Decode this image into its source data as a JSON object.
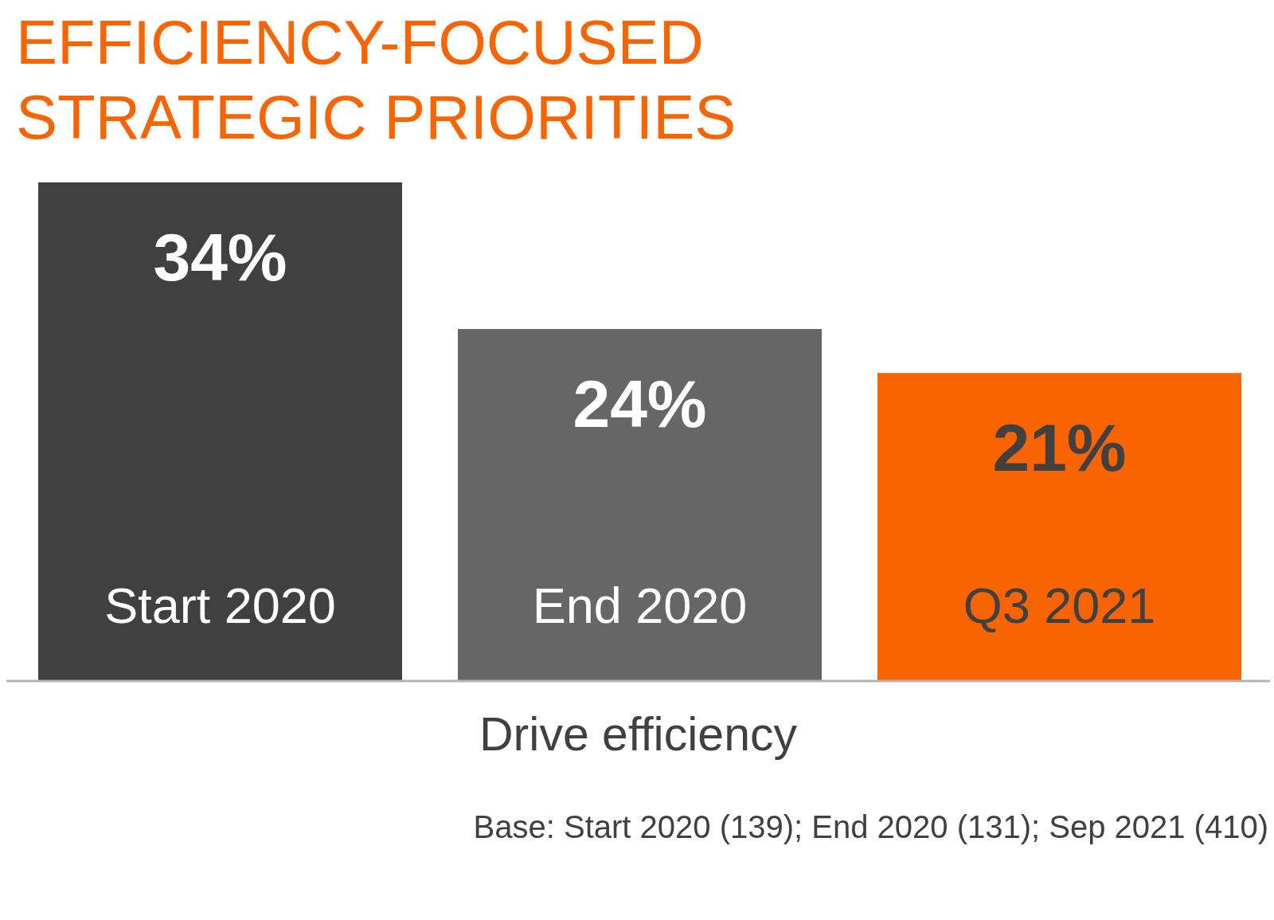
{
  "chart_data": {
    "type": "bar",
    "title": "EFFICIENCY-FOCUSED STRATEGIC PRIORITIES",
    "xlabel": "Drive efficiency",
    "categories": [
      "Start 2020",
      "End 2020",
      "Q3 2021"
    ],
    "values": [
      34,
      24,
      21
    ],
    "colors": [
      "#404040",
      "#666666",
      "#f76400"
    ],
    "value_labels": [
      "34%",
      "24%",
      "21%"
    ],
    "annotations": [
      "Base: Start 2020 (139); End 2020 (131); Sep 2021 (410)"
    ]
  }
}
